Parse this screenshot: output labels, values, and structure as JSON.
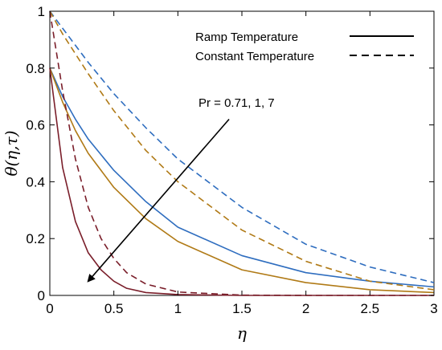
{
  "chart_data": {
    "type": "line",
    "xlabel": "η",
    "ylabel": "θ(η,τ)",
    "xlim": [
      0,
      3
    ],
    "ylim": [
      0,
      1
    ],
    "x_ticks": [
      "0",
      "0.5",
      "1",
      "1.5",
      "2",
      "2.5",
      "3"
    ],
    "y_ticks": [
      "0",
      "0.2",
      "0.4",
      "0.6",
      "0.8",
      "1"
    ],
    "grid": false,
    "legend": {
      "position": "top-right",
      "entries": [
        {
          "label": "Ramp Temperature",
          "style": "solid"
        },
        {
          "label": "Constant Temperature",
          "style": "dashed"
        }
      ]
    },
    "annotation": {
      "text": "Pr = 0.71, 1, 7",
      "arrow_from": [
        1.4,
        0.62
      ],
      "arrow_to": [
        0.3,
        0.05
      ]
    },
    "colors": {
      "pr_0_71": "#2e6dbf",
      "pr_1": "#b07a16",
      "pr_7": "#7a1e2a"
    },
    "series": [
      {
        "label": "Pr = 0.71",
        "style": "solid",
        "color": "#2e6dbf",
        "x": [
          0,
          0.1,
          0.2,
          0.3,
          0.5,
          0.75,
          1.0,
          1.5,
          2.0,
          2.5,
          3.0
        ],
        "y": [
          0.8,
          0.7,
          0.62,
          0.55,
          0.44,
          0.33,
          0.24,
          0.14,
          0.08,
          0.05,
          0.03
        ]
      },
      {
        "label": "Pr = 1",
        "style": "solid",
        "color": "#b07a16",
        "x": [
          0,
          0.1,
          0.2,
          0.3,
          0.5,
          0.75,
          1.0,
          1.5,
          2.0,
          2.5,
          3.0
        ],
        "y": [
          0.8,
          0.68,
          0.58,
          0.5,
          0.38,
          0.27,
          0.19,
          0.09,
          0.045,
          0.02,
          0.01
        ]
      },
      {
        "label": "Pr = 7",
        "style": "solid",
        "color": "#7a1e2a",
        "x": [
          0,
          0.1,
          0.2,
          0.3,
          0.4,
          0.5,
          0.6,
          0.75,
          1.0,
          1.5,
          2.0,
          3.0
        ],
        "y": [
          0.8,
          0.45,
          0.26,
          0.15,
          0.09,
          0.05,
          0.025,
          0.01,
          0.003,
          0.0,
          0.0,
          0.0
        ]
      },
      {
        "label": "Pr = 0.71",
        "style": "dashed",
        "color": "#2e6dbf",
        "x": [
          0,
          0.1,
          0.2,
          0.3,
          0.5,
          0.75,
          1.0,
          1.5,
          2.0,
          2.5,
          3.0
        ],
        "y": [
          1.0,
          0.94,
          0.88,
          0.82,
          0.71,
          0.59,
          0.48,
          0.31,
          0.18,
          0.1,
          0.045
        ]
      },
      {
        "label": "Pr = 1",
        "style": "dashed",
        "color": "#b07a16",
        "x": [
          0,
          0.1,
          0.2,
          0.3,
          0.5,
          0.75,
          1.0,
          1.5,
          2.0,
          2.5,
          3.0
        ],
        "y": [
          1.0,
          0.92,
          0.85,
          0.78,
          0.65,
          0.51,
          0.4,
          0.23,
          0.12,
          0.05,
          0.02
        ]
      },
      {
        "label": "Pr = 7",
        "style": "dashed",
        "color": "#7a1e2a",
        "x": [
          0,
          0.1,
          0.2,
          0.3,
          0.4,
          0.5,
          0.6,
          0.75,
          1.0,
          1.5,
          2.0,
          3.0
        ],
        "y": [
          1.0,
          0.72,
          0.48,
          0.31,
          0.2,
          0.13,
          0.08,
          0.04,
          0.012,
          0.001,
          0.0,
          0.0
        ]
      }
    ]
  }
}
